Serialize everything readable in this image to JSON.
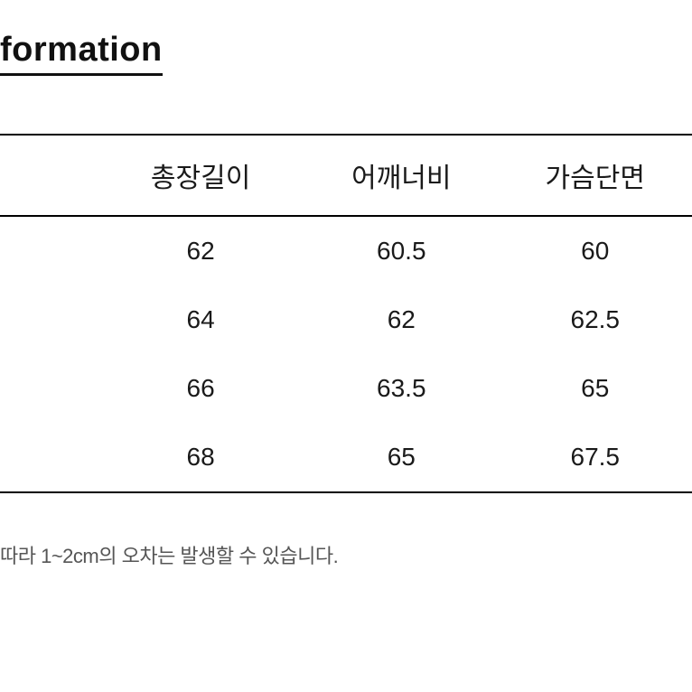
{
  "title": "formation",
  "table": {
    "columns": [
      "",
      "총장길이",
      "어깨너비",
      "가슴단면"
    ],
    "column_widths": [
      "14%",
      "30%",
      "28%",
      "28%"
    ],
    "rows": [
      [
        "",
        "62",
        "60.5",
        "60"
      ],
      [
        "",
        "64",
        "62",
        "62.5"
      ],
      [
        "",
        "66",
        "63.5",
        "65"
      ],
      [
        "",
        "68",
        "65",
        "67.5"
      ]
    ],
    "header_fontsize": 30,
    "cell_fontsize": 28,
    "border_color": "#000000",
    "text_color": "#1a1a1a",
    "background_color": "#ffffff"
  },
  "footnote": "따라 1~2cm의 오차는 발생할 수 있습니다.",
  "footnote_color": "#555555",
  "footnote_fontsize": 22
}
